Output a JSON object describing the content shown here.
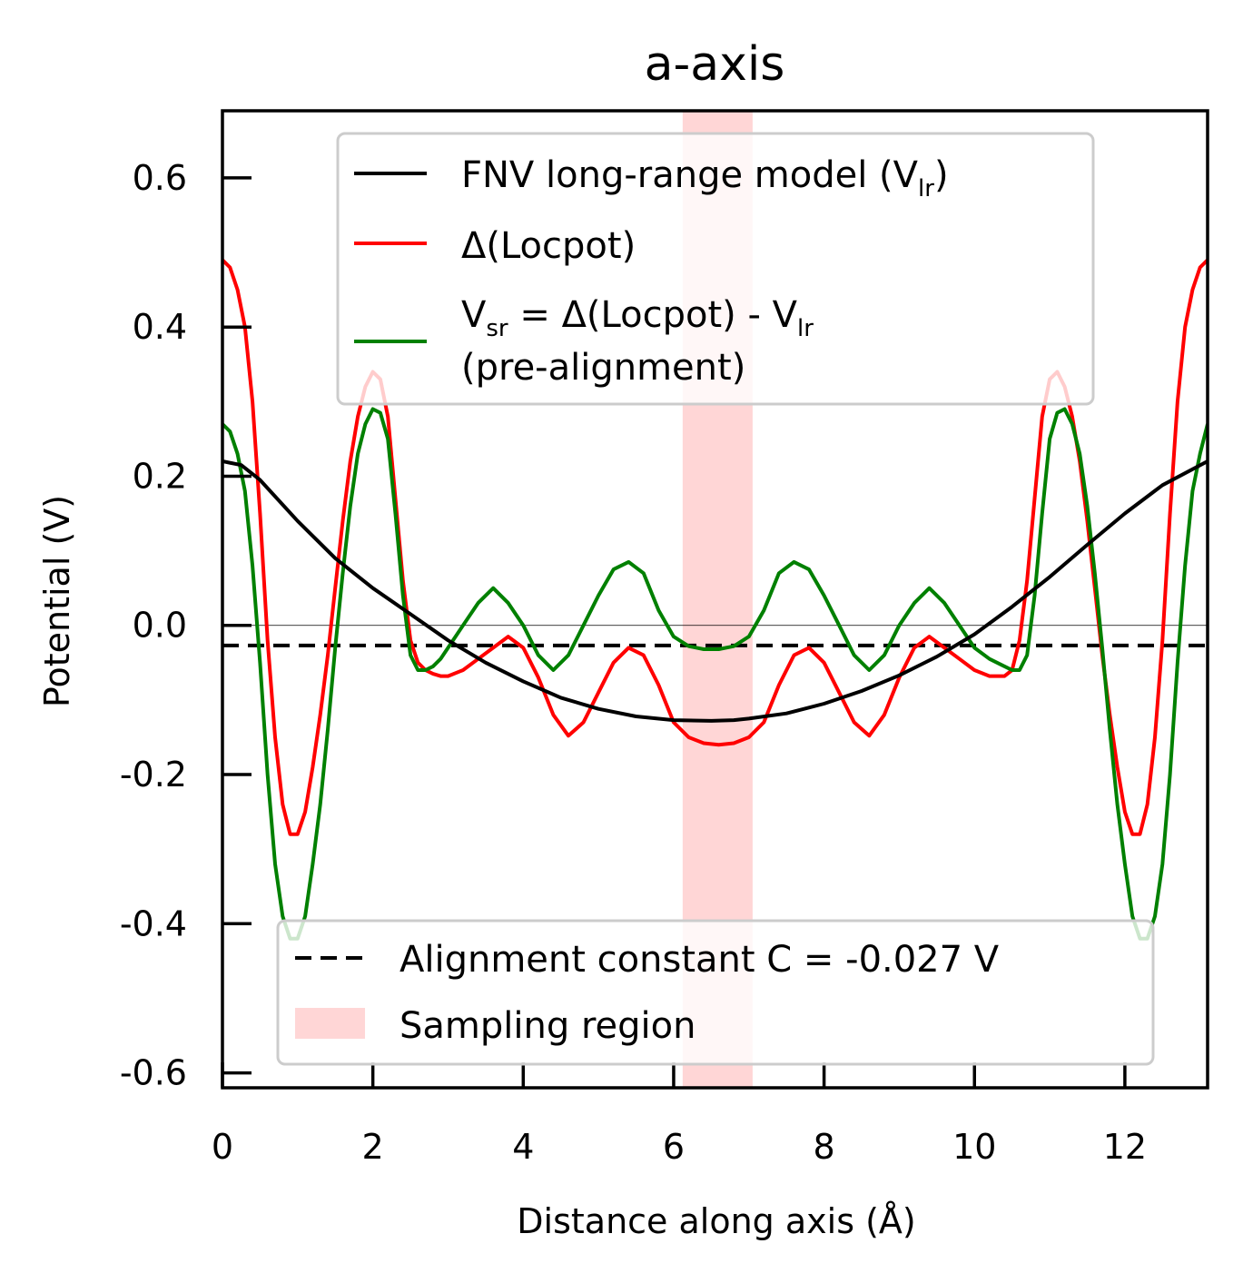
{
  "chart_data": {
    "type": "line",
    "title": "a-axis",
    "xlabel": "Distance along axis (Å)",
    "ylabel": "Potential (V)",
    "xlim": [
      0,
      13.1
    ],
    "ylim": [
      -0.62,
      0.69
    ],
    "xticks": [
      0,
      2,
      4,
      6,
      8,
      10,
      12
    ],
    "xtick_labels": [
      "0",
      "2",
      "4",
      "6",
      "8",
      "10",
      "12"
    ],
    "yticks": [
      -0.6,
      -0.4,
      -0.2,
      0.0,
      0.2,
      0.4,
      0.6
    ],
    "ytick_labels": [
      "-0.6",
      "-0.4",
      "-0.2",
      "0.0",
      "0.2",
      "0.4",
      "0.6"
    ],
    "grid": false,
    "zero_line": 0.0,
    "alignment_constant": -0.027,
    "sampling_region": [
      6.12,
      7.05
    ],
    "series": [
      {
        "key": "vlr",
        "legend_main": "FNV long-range model (V",
        "legend_sub": "lr",
        "legend_end": ")",
        "color": "#000000",
        "x": [
          0,
          0.25,
          0.5,
          1.0,
          1.5,
          2.0,
          2.5,
          3.0,
          3.5,
          4.0,
          4.5,
          5.0,
          5.5,
          6.0,
          6.5,
          6.8,
          7.0,
          7.5,
          8.0,
          8.5,
          9.0,
          9.5,
          10.0,
          10.5,
          11.0,
          11.5,
          12.0,
          12.5,
          13.1
        ],
        "y": [
          0.22,
          0.215,
          0.195,
          0.14,
          0.09,
          0.05,
          0.015,
          -0.02,
          -0.05,
          -0.075,
          -0.097,
          -0.112,
          -0.122,
          -0.127,
          -0.128,
          -0.127,
          -0.125,
          -0.118,
          -0.105,
          -0.088,
          -0.067,
          -0.042,
          -0.012,
          0.025,
          0.065,
          0.108,
          0.15,
          0.188,
          0.22
        ]
      },
      {
        "key": "dloc",
        "legend_main": "Δ(Locpot)",
        "color": "#ff0000",
        "x": [
          0,
          0.1,
          0.2,
          0.3,
          0.4,
          0.5,
          0.6,
          0.7,
          0.8,
          0.9,
          1.0,
          1.1,
          1.2,
          1.3,
          1.4,
          1.5,
          1.6,
          1.7,
          1.8,
          1.9,
          2.0,
          2.1,
          2.2,
          2.3,
          2.4,
          2.5,
          2.6,
          2.7,
          2.8,
          2.9,
          3.0,
          3.2,
          3.4,
          3.6,
          3.8,
          4.0,
          4.2,
          4.4,
          4.6,
          4.8,
          5.0,
          5.2,
          5.4,
          5.6,
          5.8,
          6.0,
          6.2,
          6.4,
          6.6,
          6.8,
          7.0,
          7.2,
          7.4,
          7.6,
          7.8,
          8.0,
          8.2,
          8.4,
          8.6,
          8.8,
          9.0,
          9.2,
          9.4,
          9.6,
          9.8,
          10.0,
          10.2,
          10.4,
          10.5,
          10.6,
          10.7,
          10.8,
          10.9,
          11.0,
          11.1,
          11.2,
          11.3,
          11.4,
          11.5,
          11.6,
          11.7,
          11.8,
          11.9,
          12.0,
          12.1,
          12.2,
          12.3,
          12.4,
          12.5,
          12.6,
          12.7,
          12.8,
          12.9,
          13.0,
          13.1
        ],
        "y": [
          0.49,
          0.48,
          0.45,
          0.4,
          0.3,
          0.15,
          -0.02,
          -0.15,
          -0.24,
          -0.28,
          -0.28,
          -0.25,
          -0.19,
          -0.12,
          -0.04,
          0.05,
          0.14,
          0.22,
          0.28,
          0.32,
          0.34,
          0.33,
          0.28,
          0.17,
          0.06,
          -0.02,
          -0.05,
          -0.06,
          -0.065,
          -0.068,
          -0.068,
          -0.06,
          -0.045,
          -0.03,
          -0.015,
          -0.03,
          -0.07,
          -0.12,
          -0.148,
          -0.13,
          -0.09,
          -0.05,
          -0.03,
          -0.04,
          -0.08,
          -0.13,
          -0.15,
          -0.158,
          -0.16,
          -0.158,
          -0.15,
          -0.13,
          -0.08,
          -0.04,
          -0.03,
          -0.05,
          -0.09,
          -0.13,
          -0.148,
          -0.12,
          -0.07,
          -0.03,
          -0.015,
          -0.03,
          -0.045,
          -0.06,
          -0.068,
          -0.068,
          -0.06,
          -0.02,
          0.06,
          0.17,
          0.28,
          0.33,
          0.34,
          0.32,
          0.28,
          0.22,
          0.14,
          0.05,
          -0.04,
          -0.12,
          -0.19,
          -0.25,
          -0.28,
          -0.28,
          -0.24,
          -0.15,
          -0.02,
          0.15,
          0.3,
          0.4,
          0.45,
          0.48,
          0.49
        ]
      },
      {
        "key": "vsr",
        "legend_line1_main": "V",
        "legend_line1_sub": "sr",
        "legend_line1_mid": " = Δ(Locpot) - V",
        "legend_line1_sub2": "lr",
        "legend_line2": "(pre-alignment)",
        "color": "#008000",
        "x": [
          0,
          0.1,
          0.2,
          0.3,
          0.4,
          0.5,
          0.6,
          0.7,
          0.8,
          0.9,
          1.0,
          1.1,
          1.2,
          1.3,
          1.4,
          1.5,
          1.6,
          1.7,
          1.8,
          1.9,
          2.0,
          2.1,
          2.2,
          2.3,
          2.4,
          2.5,
          2.6,
          2.7,
          2.8,
          2.9,
          3.0,
          3.2,
          3.4,
          3.6,
          3.8,
          4.0,
          4.2,
          4.4,
          4.6,
          4.8,
          5.0,
          5.2,
          5.4,
          5.6,
          5.8,
          6.0,
          6.2,
          6.4,
          6.6,
          6.8,
          7.0,
          7.2,
          7.4,
          7.6,
          7.8,
          8.0,
          8.2,
          8.4,
          8.6,
          8.8,
          9.0,
          9.2,
          9.4,
          9.6,
          9.8,
          10.0,
          10.2,
          10.4,
          10.5,
          10.6,
          10.7,
          10.8,
          10.9,
          11.0,
          11.1,
          11.2,
          11.3,
          11.4,
          11.5,
          11.6,
          11.7,
          11.8,
          11.9,
          12.0,
          12.1,
          12.2,
          12.3,
          12.4,
          12.5,
          12.6,
          12.7,
          12.8,
          12.9,
          13.0,
          13.1
        ],
        "y": [
          0.27,
          0.26,
          0.23,
          0.18,
          0.08,
          -0.05,
          -0.2,
          -0.32,
          -0.39,
          -0.42,
          -0.42,
          -0.39,
          -0.32,
          -0.24,
          -0.14,
          -0.03,
          0.07,
          0.16,
          0.23,
          0.27,
          0.29,
          0.285,
          0.25,
          0.15,
          0.04,
          -0.04,
          -0.06,
          -0.06,
          -0.055,
          -0.045,
          -0.03,
          0.0,
          0.03,
          0.05,
          0.03,
          0.0,
          -0.04,
          -0.06,
          -0.04,
          0.0,
          0.04,
          0.075,
          0.085,
          0.07,
          0.02,
          -0.015,
          -0.028,
          -0.032,
          -0.032,
          -0.028,
          -0.015,
          0.02,
          0.07,
          0.085,
          0.075,
          0.04,
          0.0,
          -0.04,
          -0.06,
          -0.04,
          0.0,
          0.03,
          0.05,
          0.03,
          0.0,
          -0.03,
          -0.045,
          -0.055,
          -0.06,
          -0.06,
          -0.04,
          0.04,
          0.15,
          0.25,
          0.285,
          0.29,
          0.27,
          0.23,
          0.16,
          0.07,
          -0.03,
          -0.14,
          -0.24,
          -0.32,
          -0.39,
          -0.42,
          -0.42,
          -0.39,
          -0.32,
          -0.2,
          -0.05,
          0.08,
          0.18,
          0.23,
          0.27
        ]
      }
    ],
    "legend_upper_placement": "upper-center",
    "legend_lower_placement": "lower-center",
    "legend_alignment_label": "Alignment constant C = -0.027 V",
    "legend_sampling_label": "Sampling region",
    "alignment_color": "#000000",
    "sampling_color": "#ffd6d6"
  }
}
